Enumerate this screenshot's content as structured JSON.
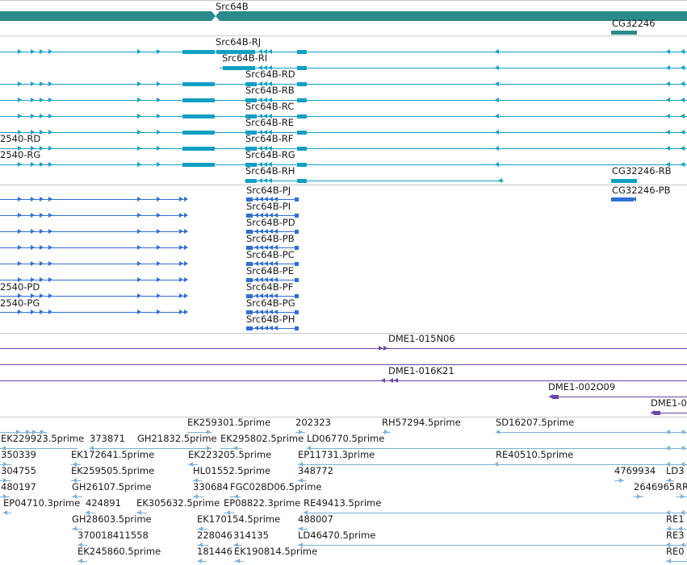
{
  "tracks": {
    "gene": {
      "color": "#2a8a8c",
      "labels": {
        "src64b": "Src64B",
        "cg32246": "CG32246"
      }
    },
    "transcripts": {
      "color": "#139fc4",
      "labels": {
        "rj": "Src64B-RJ",
        "ri": "Src64B-RI",
        "rd": "Src64B-RD",
        "rb": "Src64B-RB",
        "rc": "Src64B-RC",
        "re": "Src64B-RE",
        "rf": "Src64B-RF",
        "rg": "Src64B-RG",
        "rh": "Src64B-RH",
        "left_rd": "2540-RD",
        "left_rg": "2540-RG",
        "cg_rb": "CG32246-RB"
      }
    },
    "proteins": {
      "color": "#2f6fd3",
      "labels": {
        "pj": "Src64B-PJ",
        "pi": "Src64B-PI",
        "pd": "Src64B-PD",
        "pb": "Src64B-PB",
        "pc": "Src64B-PC",
        "pe": "Src64B-PE",
        "pf": "Src64B-PF",
        "pg": "Src64B-PG",
        "ph": "Src64B-PH",
        "left_pd": "2540-PD",
        "left_pg": "2540-PG",
        "cg_pb": "CG32246-PB"
      }
    },
    "clones": {
      "color": "#6b45a8",
      "labels": {
        "n06": "DME1-015N06",
        "k21": "DME1-016K21",
        "o09": "DME1-002O09",
        "cut": "DME1-0"
      }
    },
    "ests": {
      "color": "#7ab0dc",
      "labels": {
        "ek259301": "EK259301.5prime",
        "e202323": "202323",
        "rh57294": "RH57294.5prime",
        "sd16207": "SD16207.5prime",
        "ek229923": "EK229923.5prime",
        "e373871": "373871",
        "gh21832": "GH21832.5prime",
        "ek295802": "EK295802.5prime",
        "ld06770": "LD06770.5prime",
        "e350339": "350339",
        "ek172641": "EK172641.5prime",
        "ek223205": "EK223205.5prime",
        "ep11731": "EP11731.3prime",
        "re40510": "RE40510.5prime",
        "e304755": "304755",
        "ek259505": "EK259505.5prime",
        "hl01552": "HL01552.5prime",
        "e348772": "348772",
        "e4769934": "4769934",
        "ld3": "LD3",
        "e480197": "480197",
        "gh26107": "GH26107.5prime",
        "e330684": "330684",
        "fgc028d06": "FGC028D06.5prime",
        "e2646965": "2646965",
        "rr": "RR",
        "ep04710": "EP04710.3prime",
        "e424891": "424891",
        "ek305632": "EK305632.5prime",
        "ep08822": "EP08822.3prime",
        "re49413": "RE49413.5prime",
        "gh28603": "GH28603.5prime",
        "ek170154": "EK170154.5prime",
        "e488007": "488007",
        "re1": "RE1",
        "e370018411558": "370018411558",
        "e228046": "228046",
        "e314135": "314135",
        "ld46470": "LD46470.5prime",
        "re3": "RE3",
        "ek245860": "EK245860.5prime",
        "e181446": "181446",
        "ek190814": "EK190814.5prime",
        "re0": "RE0"
      }
    }
  }
}
